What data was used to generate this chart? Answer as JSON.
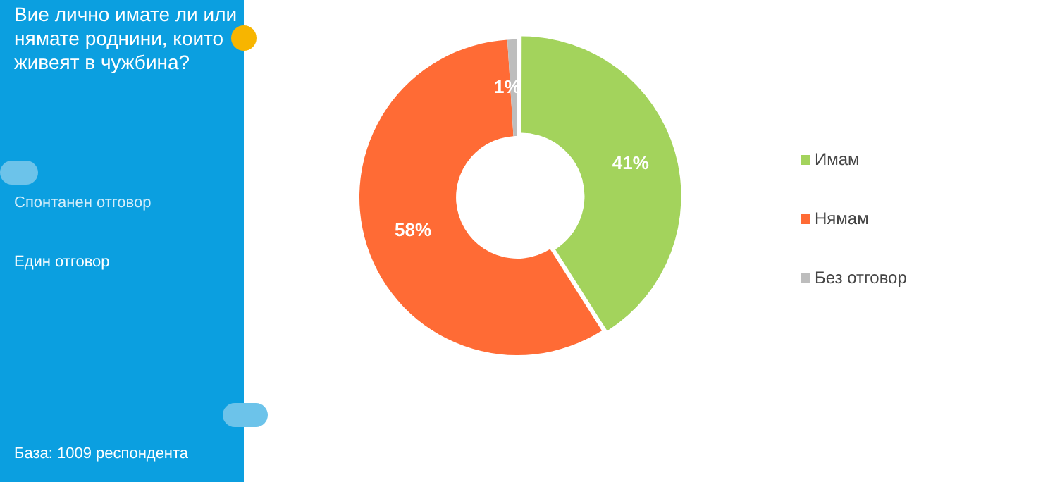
{
  "chart_data": {
    "type": "donut",
    "title": "Вие лично имате ли или нямате роднини, които живеят в чужбина?",
    "annotations": [
      "Спонтанен отговор",
      "Един отговор",
      "База: 1009 респондента"
    ],
    "categories": [
      "Имам",
      "Нямам",
      "Без отговор"
    ],
    "values": [
      41,
      58,
      1
    ],
    "colors": [
      "#a3d35c",
      "#ff6b35",
      "#bdbdbd"
    ],
    "value_labels": [
      "41%",
      "58%",
      "1%"
    ],
    "legend": "right"
  }
}
